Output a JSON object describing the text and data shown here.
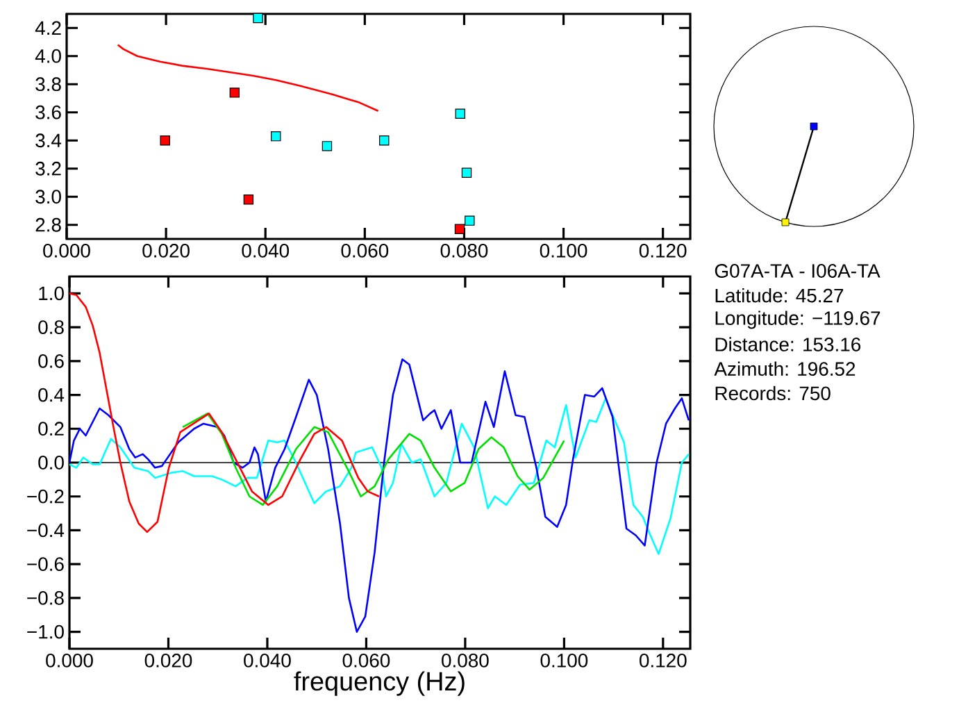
{
  "chart_data": [
    {
      "type": "scatter",
      "xlim": [
        0,
        0.1255
      ],
      "ylim": [
        2.7,
        4.3
      ],
      "xticks": [
        {
          "value": 0,
          "label": "0.000"
        },
        {
          "value": 0.02,
          "label": "0.020"
        },
        {
          "value": 0.04,
          "label": "0.040"
        },
        {
          "value": 0.06,
          "label": "0.060"
        },
        {
          "value": 0.08,
          "label": "0.080"
        },
        {
          "value": 0.1,
          "label": "0.100"
        },
        {
          "value": 0.12,
          "label": "0.120"
        }
      ],
      "yticks": [
        {
          "value": 2.8,
          "label": "2.8"
        },
        {
          "value": 3.0,
          "label": "3.0"
        },
        {
          "value": 3.2,
          "label": "3.2"
        },
        {
          "value": 3.4,
          "label": "3.4"
        },
        {
          "value": 3.6,
          "label": "3.6"
        },
        {
          "value": 3.8,
          "label": "3.8"
        },
        {
          "value": 4.0,
          "label": "4.0"
        },
        {
          "value": 4.2,
          "label": "4.2"
        }
      ],
      "series": [
        {
          "type": "line",
          "color": "#ff0000",
          "x": [
            0.0103,
            0.0114,
            0.0142,
            0.0188,
            0.0235,
            0.0282,
            0.0375,
            0.0421,
            0.0468,
            0.0533,
            0.0589,
            0.0627
          ],
          "values": [
            4.08,
            4.05,
            4.0,
            3.96,
            3.93,
            3.91,
            3.86,
            3.83,
            3.79,
            3.73,
            3.67,
            3.61
          ]
        },
        {
          "type": "scatter",
          "marker": "square",
          "color": "#ff0000",
          "x": [
            0.0198,
            0.0338,
            0.0366,
            0.0791
          ],
          "values": [
            3.4,
            3.74,
            2.98,
            2.77
          ]
        },
        {
          "type": "scatter",
          "marker": "square",
          "color": "#00ffff",
          "x": [
            0.0385,
            0.0421,
            0.0524,
            0.0639,
            0.0792,
            0.0805,
            0.0811
          ],
          "values": [
            4.27,
            3.43,
            3.36,
            3.4,
            3.59,
            3.17,
            2.83
          ]
        }
      ]
    },
    {
      "type": "line",
      "xlabel": "frequency (Hz)",
      "xlim": [
        0,
        0.1255
      ],
      "ylim": [
        -1.1,
        1.1
      ],
      "xticks": [
        {
          "value": 0,
          "label": "0.000"
        },
        {
          "value": 0.02,
          "label": "0.020"
        },
        {
          "value": 0.04,
          "label": "0.040"
        },
        {
          "value": 0.06,
          "label": "0.060"
        },
        {
          "value": 0.08,
          "label": "0.080"
        },
        {
          "value": 0.1,
          "label": "0.100"
        },
        {
          "value": 0.12,
          "label": "0.120"
        }
      ],
      "yticks": [
        {
          "value": -1.0,
          "label": "−1.0"
        },
        {
          "value": -0.8,
          "label": "−0.8"
        },
        {
          "value": -0.6,
          "label": "−0.6"
        },
        {
          "value": -0.4,
          "label": "−0.4"
        },
        {
          "value": -0.2,
          "label": "−0.2"
        },
        {
          "value": 0.0,
          "label": "0.0"
        },
        {
          "value": 0.2,
          "label": "0.2"
        },
        {
          "value": 0.4,
          "label": "0.4"
        },
        {
          "value": 0.6,
          "label": "0.6"
        },
        {
          "value": 0.8,
          "label": "0.8"
        },
        {
          "value": 1.0,
          "label": "1.0"
        }
      ],
      "ref_lines": [
        {
          "axis": "y",
          "value": 0,
          "color": "#000000"
        }
      ],
      "series": [
        {
          "color": "#00ffff",
          "x": [
            0,
            0.0014,
            0.0028,
            0.0047,
            0.0061,
            0.0084,
            0.0103,
            0.0131,
            0.0159,
            0.0173,
            0.0206,
            0.0229,
            0.0252,
            0.0288,
            0.0308,
            0.0336,
            0.036,
            0.0379,
            0.0402,
            0.042,
            0.0435,
            0.0458,
            0.0495,
            0.0519,
            0.0547,
            0.057,
            0.0579,
            0.0612,
            0.0631,
            0.064,
            0.0654,
            0.0671,
            0.0692,
            0.071,
            0.0738,
            0.0762,
            0.0793,
            0.0818,
            0.0846,
            0.086,
            0.0883,
            0.0911,
            0.0939,
            0.0964,
            0.0981,
            0.1004,
            0.1023,
            0.1051,
            0.1065,
            0.1084,
            0.1121,
            0.114,
            0.1159,
            0.1173,
            0.1191,
            0.1215,
            0.1238,
            0.1252
          ],
          "values": [
            -0.01,
            -0.03,
            0.03,
            -0.01,
            -0.01,
            0.14,
            0.09,
            -0.03,
            -0.05,
            -0.09,
            -0.06,
            -0.05,
            -0.08,
            -0.08,
            -0.1,
            -0.14,
            -0.09,
            -0.09,
            0.13,
            0.12,
            0.13,
            0.0,
            -0.24,
            -0.17,
            -0.14,
            -0.03,
            0.06,
            0.09,
            -0.03,
            -0.2,
            -0.12,
            0.11,
            0.0,
            0.02,
            -0.2,
            -0.12,
            0.23,
            0.09,
            -0.27,
            -0.2,
            -0.25,
            -0.13,
            -0.12,
            0.13,
            0.09,
            0.34,
            0.03,
            0.25,
            0.24,
            0.38,
            0.12,
            -0.25,
            -0.32,
            -0.42,
            -0.54,
            -0.33,
            0.0,
            0.05
          ]
        },
        {
          "color": "#0000ff",
          "x": [
            0,
            0.0009,
            0.0021,
            0.0033,
            0.0047,
            0.0061,
            0.0079,
            0.0103,
            0.0121,
            0.0133,
            0.0148,
            0.0159,
            0.0173,
            0.0187,
            0.022,
            0.0252,
            0.0271,
            0.0299,
            0.0313,
            0.0332,
            0.035,
            0.0364,
            0.0374,
            0.0381,
            0.0397,
            0.0416,
            0.0435,
            0.0458,
            0.0484,
            0.05,
            0.0523,
            0.0547,
            0.0565,
            0.0581,
            0.0598,
            0.0617,
            0.0636,
            0.0654,
            0.0673,
            0.0687,
            0.0715,
            0.0729,
            0.0738,
            0.0752,
            0.0771,
            0.079,
            0.0813,
            0.0841,
            0.0858,
            0.088,
            0.0902,
            0.092,
            0.0944,
            0.0962,
            0.0986,
            0.1004,
            0.1018,
            0.1042,
            0.1061,
            0.1077,
            0.1098,
            0.1126,
            0.1145,
            0.1163,
            0.1187,
            0.1206,
            0.1224,
            0.1238,
            0.1252
          ],
          "values": [
            0.0,
            0.13,
            0.2,
            0.16,
            0.24,
            0.32,
            0.28,
            0.21,
            0.08,
            0.03,
            0.05,
            0.02,
            -0.03,
            -0.02,
            0.12,
            0.2,
            0.23,
            0.21,
            0.16,
            0.0,
            -0.03,
            0.0,
            0.09,
            0.05,
            -0.23,
            -0.03,
            0.08,
            0.27,
            0.49,
            0.4,
            0.08,
            -0.36,
            -0.8,
            -1.0,
            -0.91,
            -0.53,
            0.0,
            0.4,
            0.61,
            0.58,
            0.25,
            0.29,
            0.31,
            0.2,
            0.31,
            0.0,
            0.0,
            0.36,
            0.21,
            0.54,
            0.28,
            0.27,
            -0.03,
            -0.32,
            -0.38,
            -0.25,
            0.02,
            0.4,
            0.39,
            0.44,
            0.27,
            -0.39,
            -0.43,
            -0.49,
            0.0,
            0.23,
            0.32,
            0.38,
            0.25
          ]
        },
        {
          "color": "#00e000",
          "x": [
            0.0229,
            0.0279,
            0.0308,
            0.0336,
            0.0364,
            0.0391,
            0.042,
            0.0458,
            0.0495,
            0.0523,
            0.0561,
            0.0589,
            0.0617,
            0.0645,
            0.0687,
            0.071,
            0.0738,
            0.0771,
            0.0799,
            0.0827,
            0.0853,
            0.0878,
            0.0906,
            0.093,
            0.0958,
            0.1
          ],
          "values": [
            0.21,
            0.29,
            0.17,
            -0.03,
            -0.2,
            -0.25,
            -0.14,
            0.08,
            0.21,
            0.18,
            -0.03,
            -0.2,
            -0.14,
            0.02,
            0.17,
            0.13,
            -0.03,
            -0.17,
            -0.12,
            0.08,
            0.15,
            0.09,
            -0.08,
            -0.16,
            -0.09,
            0.13
          ]
        },
        {
          "color": "#ff0000",
          "x": [
            0,
            0.0014,
            0.0033,
            0.0047,
            0.0061,
            0.0075,
            0.0089,
            0.0103,
            0.0121,
            0.014,
            0.0157,
            0.0178,
            0.0201,
            0.0224,
            0.0282,
            0.0308,
            0.0336,
            0.0369,
            0.0402,
            0.043,
            0.0467,
            0.0495,
            0.0519,
            0.0551,
            0.0584,
            0.0603,
            0.0626
          ],
          "values": [
            1.0,
            0.99,
            0.92,
            0.81,
            0.65,
            0.43,
            0.21,
            0.0,
            -0.23,
            -0.36,
            -0.41,
            -0.35,
            -0.03,
            0.18,
            0.29,
            0.18,
            0.02,
            -0.17,
            -0.25,
            -0.2,
            0.02,
            0.17,
            0.21,
            0.13,
            -0.09,
            -0.17,
            -0.2
          ]
        }
      ]
    },
    {
      "type": "other",
      "annotations": [
        "G07A-TA - I06A-TA",
        "Latitude: 45.27",
        "Longitude: −119.67",
        "Distance: 153.16",
        "Azimuth: 196.52",
        "Records: 750"
      ]
    }
  ]
}
